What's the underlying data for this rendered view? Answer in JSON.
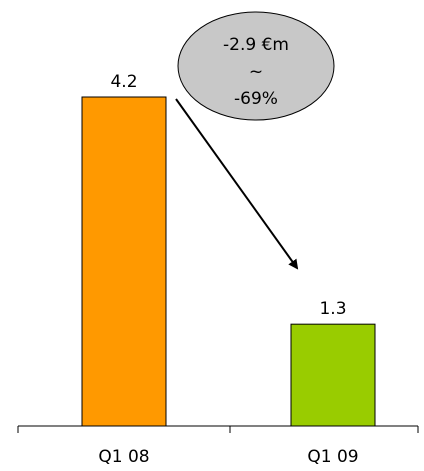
{
  "chart_data": {
    "type": "bar",
    "categories": [
      "Q1 08",
      "Q1 09"
    ],
    "values": [
      4.2,
      1.3
    ],
    "value_labels": [
      "4.2",
      "1.3"
    ],
    "colors": [
      "#FF9900",
      "#99CC00"
    ],
    "ylim": [
      0,
      4.2
    ],
    "grid": false,
    "title": "",
    "xlabel": "",
    "ylabel": "",
    "annotation": {
      "lines": [
        "-2.9 €m",
        "~",
        "-69%"
      ],
      "fill": "#C8C8C8"
    }
  }
}
